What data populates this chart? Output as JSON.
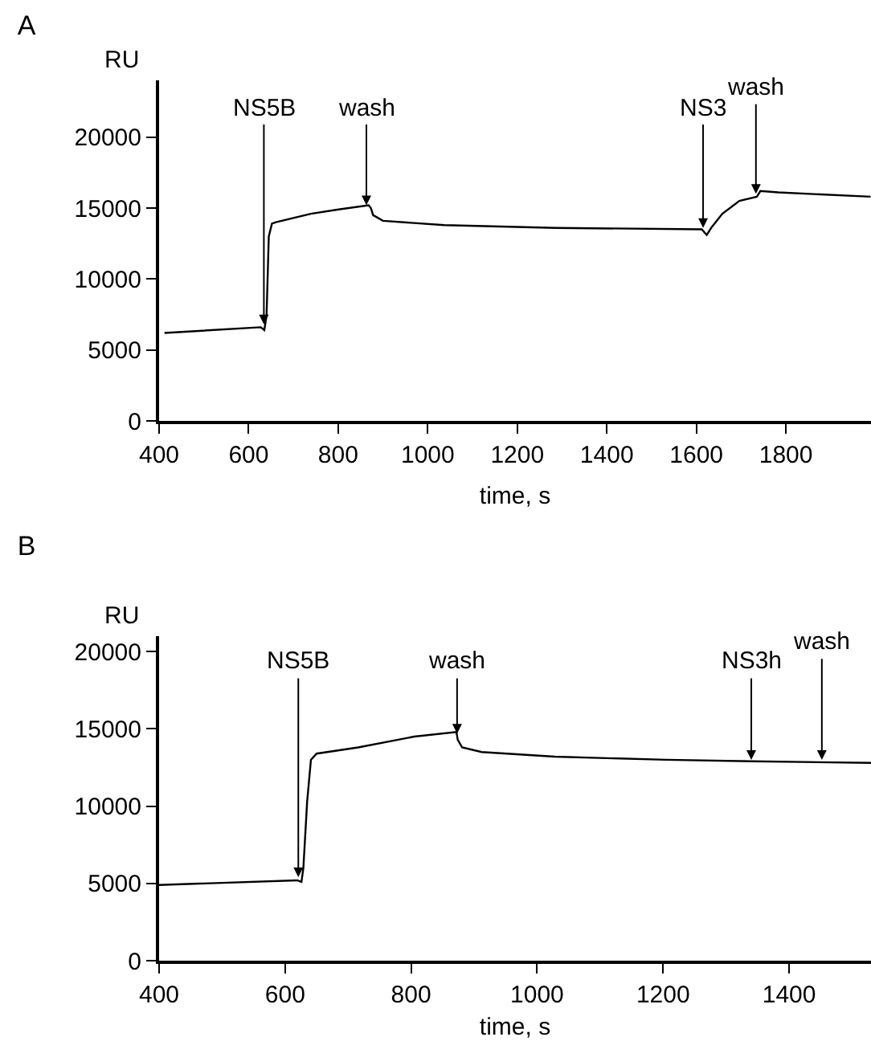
{
  "chart_data": [
    {
      "type": "line",
      "title": "A",
      "xlabel": "time, s",
      "ylabel": "RU",
      "x": [
        412,
        627,
        635,
        640,
        645,
        652,
        661,
        739,
        801,
        868,
        873,
        878,
        900,
        1037,
        1286,
        1612,
        1623,
        1633,
        1658,
        1696,
        1735,
        1743,
        1783,
        1989
      ],
      "series": [
        {
          "color": "#000000",
          "values": [
            6200,
            6600,
            6400,
            7400,
            13000,
            13900,
            14000,
            14600,
            14900,
            15200,
            15000,
            14500,
            14100,
            13800,
            13600,
            13500,
            13100,
            13600,
            14600,
            15500,
            15800,
            16200,
            16100,
            15800
          ]
        }
      ],
      "xlim": [
        400,
        1990
      ],
      "xticks": [
        400,
        600,
        800,
        1000,
        1200,
        1400,
        1600,
        1800
      ],
      "ylim": [
        0,
        24000
      ],
      "yticks": [
        0,
        5000,
        10000,
        15000,
        20000
      ],
      "annotations": [
        {
          "text": "NS5B",
          "x": 634,
          "y": 6800
        },
        {
          "text": "wash",
          "x": 863,
          "y": 15200
        },
        {
          "text": "NS3",
          "x": 1615,
          "y": 13600
        },
        {
          "text": "wash",
          "x": 1733,
          "y": 16000
        }
      ],
      "marker": "none",
      "line_style": "solid"
    },
    {
      "type": "line",
      "title": "B",
      "xlabel": "time, s",
      "ylabel": "RU",
      "x": [
        400,
        619,
        626,
        629,
        635,
        641,
        650,
        716,
        805,
        872,
        874,
        881,
        912,
        1028,
        1205,
        1339,
        1530
      ],
      "series": [
        {
          "color": "#000000",
          "values": [
            4900,
            5200,
            5100,
            6000,
            10300,
            13000,
            13400,
            13800,
            14500,
            14800,
            14300,
            13800,
            13500,
            13200,
            13000,
            12900,
            12800
          ]
        }
      ],
      "xlim": [
        400,
        1530
      ],
      "xticks": [
        400,
        600,
        800,
        1000,
        1200,
        1400
      ],
      "ylim": [
        0,
        21000
      ],
      "yticks": [
        0,
        5000,
        10000,
        15000,
        20000
      ],
      "annotations": [
        {
          "text": "NS5B",
          "x": 621,
          "y": 5400
        },
        {
          "text": "wash",
          "x": 873,
          "y": 14700
        },
        {
          "text": "NS3h",
          "x": 1340,
          "y": 13000
        },
        {
          "text": "wash",
          "x": 1452,
          "y": 13000
        }
      ],
      "marker": "none",
      "line_style": "solid"
    }
  ]
}
